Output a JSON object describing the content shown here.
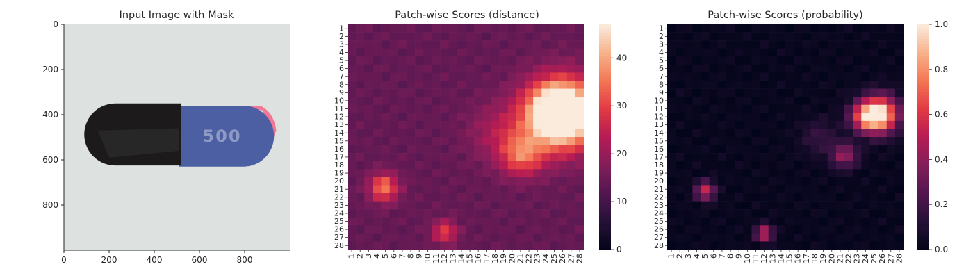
{
  "chart_data": [
    {
      "type": "image",
      "title": "Input Image with Mask",
      "xlim": [
        0,
        1000
      ],
      "ylim": [
        1000,
        0
      ],
      "xticks": [
        0,
        200,
        400,
        600,
        800
      ],
      "yticks": [
        0,
        200,
        400,
        600,
        800
      ],
      "image_content": {
        "subject": "capsule",
        "left_half_color": "#1c1a1b",
        "right_half_color": "#4d5fa3",
        "imprint": "500",
        "mask_color": "#f07896",
        "background_color": "#dde1e0"
      }
    },
    {
      "type": "heatmap",
      "title": "Patch-wise Scores (distance)",
      "rows": 28,
      "cols": 28,
      "row_labels": [
        "1",
        "2",
        "3",
        "4",
        "5",
        "6",
        "7",
        "8",
        "9",
        "10",
        "11",
        "12",
        "13",
        "14",
        "15",
        "16",
        "17",
        "18",
        "19",
        "20",
        "21",
        "22",
        "23",
        "24",
        "25",
        "26",
        "27",
        "28"
      ],
      "col_labels": [
        "1",
        "2",
        "3",
        "4",
        "5",
        "6",
        "7",
        "8",
        "9",
        "10",
        "11",
        "12",
        "13",
        "14",
        "15",
        "16",
        "17",
        "18",
        "19",
        "20",
        "21",
        "22",
        "23",
        "24",
        "25",
        "26",
        "27",
        "28"
      ],
      "colorbar": {
        "min": 0,
        "max": 47,
        "ticks": [
          0,
          10,
          20,
          30,
          40
        ],
        "colormap": "rocket"
      },
      "base": 14,
      "hotspots": [
        {
          "row": 11.7,
          "col": 25.8,
          "peak": 47,
          "spread": 3.0
        },
        {
          "row": 11.0,
          "col": 25.5,
          "peak": 12,
          "spread": 2.0
        },
        {
          "row": 16.8,
          "col": 21.2,
          "peak": 18,
          "spread": 1.8
        },
        {
          "row": 20.8,
          "col": 4.8,
          "peak": 22,
          "spread": 1.2
        },
        {
          "row": 26.3,
          "col": 12.0,
          "peak": 16,
          "spread": 1.0
        },
        {
          "row": 14.0,
          "col": 18.5,
          "peak": 8,
          "spread": 2.5
        }
      ]
    },
    {
      "type": "heatmap",
      "title": "Patch-wise Scores (probability)",
      "rows": 28,
      "cols": 28,
      "row_labels": [
        "1",
        "2",
        "3",
        "4",
        "5",
        "6",
        "7",
        "8",
        "9",
        "10",
        "11",
        "12",
        "13",
        "14",
        "15",
        "16",
        "17",
        "18",
        "19",
        "20",
        "21",
        "22",
        "23",
        "24",
        "25",
        "26",
        "27",
        "28"
      ],
      "col_labels": [
        "1",
        "2",
        "3",
        "4",
        "5",
        "6",
        "7",
        "8",
        "9",
        "10",
        "11",
        "12",
        "13",
        "14",
        "15",
        "16",
        "17",
        "18",
        "19",
        "20",
        "21",
        "22",
        "23",
        "24",
        "25",
        "26",
        "27",
        "28"
      ],
      "colorbar": {
        "min": 0,
        "max": 1.0,
        "ticks": [
          0.0,
          0.2,
          0.4,
          0.6,
          0.8,
          1.0
        ],
        "tick_labels": [
          "0.0",
          "0.2",
          "0.4",
          "0.6",
          "0.8",
          "1.0"
        ],
        "colormap": "rocket"
      },
      "base": 0.02,
      "hotspots": [
        {
          "row": 11.7,
          "col": 25.6,
          "peak": 1.0,
          "spread": 1.6
        },
        {
          "row": 12.0,
          "col": 23.8,
          "peak": 0.45,
          "spread": 1.2
        },
        {
          "row": 16.8,
          "col": 21.5,
          "peak": 0.4,
          "spread": 1.1
        },
        {
          "row": 21.2,
          "col": 5.0,
          "peak": 0.55,
          "spread": 0.8
        },
        {
          "row": 26.5,
          "col": 12.0,
          "peak": 0.55,
          "spread": 0.7
        },
        {
          "row": 14.5,
          "col": 18.5,
          "peak": 0.15,
          "spread": 1.5
        }
      ]
    }
  ]
}
